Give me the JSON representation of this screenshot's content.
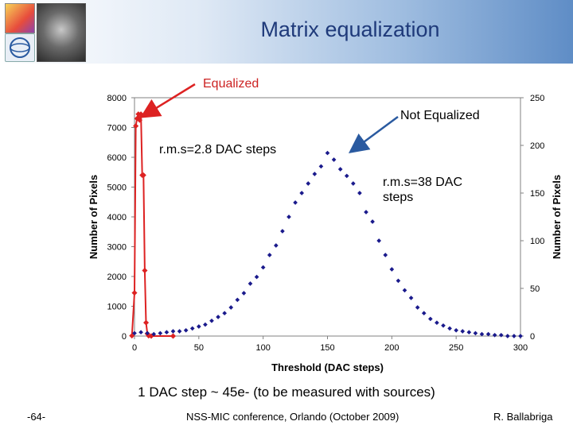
{
  "header": {
    "title": "Matrix equalization"
  },
  "annotations": {
    "equalized": "Equalized",
    "not_equalized": "Not Equalized",
    "rms_equalized": "r.m.s=2.8 DAC steps",
    "rms_not_equalized": "r.m.s=38 DAC steps"
  },
  "caption": "1 DAC step ~ 45e-  (to be measured with sources)",
  "footer": {
    "page": "-64-",
    "conference": "NSS-MIC conference, Orlando (October 2009)",
    "author": "R. Ballabriga"
  },
  "colors": {
    "equalized": "#dd2222",
    "not_equalized": "#1a1a8c",
    "title": "#1f3a7a"
  },
  "chart_data": {
    "type": "scatter",
    "xlabel": "Threshold (DAC steps)",
    "ylabel_left": "Number of Pixels",
    "ylabel_right": "Number of Pixels",
    "xlim": [
      0,
      300
    ],
    "ylim_left": [
      0,
      8000
    ],
    "ylim_right": [
      0,
      250
    ],
    "x_ticks": [
      0,
      50,
      100,
      150,
      200,
      250,
      300
    ],
    "y_ticks_left": [
      0,
      1000,
      2000,
      3000,
      4000,
      5000,
      6000,
      7000,
      8000
    ],
    "y_ticks_right": [
      0,
      50,
      100,
      150,
      200,
      250
    ],
    "series": [
      {
        "name": "Equalized",
        "axis": "left",
        "style": "line-markers",
        "x": [
          -2,
          0,
          1,
          2,
          3,
          4,
          5,
          6,
          7,
          8,
          9,
          10,
          11,
          13,
          30
        ],
        "y": [
          10,
          1450,
          7050,
          7300,
          7450,
          7250,
          7450,
          5400,
          5400,
          2200,
          450,
          80,
          10,
          0,
          0
        ]
      },
      {
        "name": "Not Equalized",
        "axis": "right",
        "style": "markers",
        "x": [
          0,
          5,
          10,
          15,
          20,
          25,
          30,
          35,
          40,
          45,
          50,
          55,
          60,
          65,
          70,
          75,
          80,
          85,
          90,
          95,
          100,
          105,
          110,
          115,
          120,
          125,
          130,
          135,
          140,
          145,
          150,
          155,
          160,
          165,
          170,
          175,
          180,
          185,
          190,
          195,
          200,
          205,
          210,
          215,
          220,
          225,
          230,
          235,
          240,
          245,
          250,
          255,
          260,
          265,
          270,
          275,
          280,
          285,
          290,
          295,
          300
        ],
        "y": [
          3,
          4,
          3,
          2,
          3,
          4,
          5,
          5,
          6,
          8,
          10,
          12,
          16,
          20,
          24,
          30,
          38,
          45,
          55,
          62,
          72,
          85,
          95,
          110,
          125,
          140,
          150,
          160,
          170,
          178,
          192,
          185,
          175,
          168,
          160,
          150,
          130,
          120,
          100,
          85,
          70,
          58,
          48,
          40,
          30,
          24,
          18,
          14,
          11,
          8,
          6,
          5,
          4,
          3,
          2,
          2,
          1,
          1,
          0,
          0,
          0
        ]
      }
    ]
  }
}
